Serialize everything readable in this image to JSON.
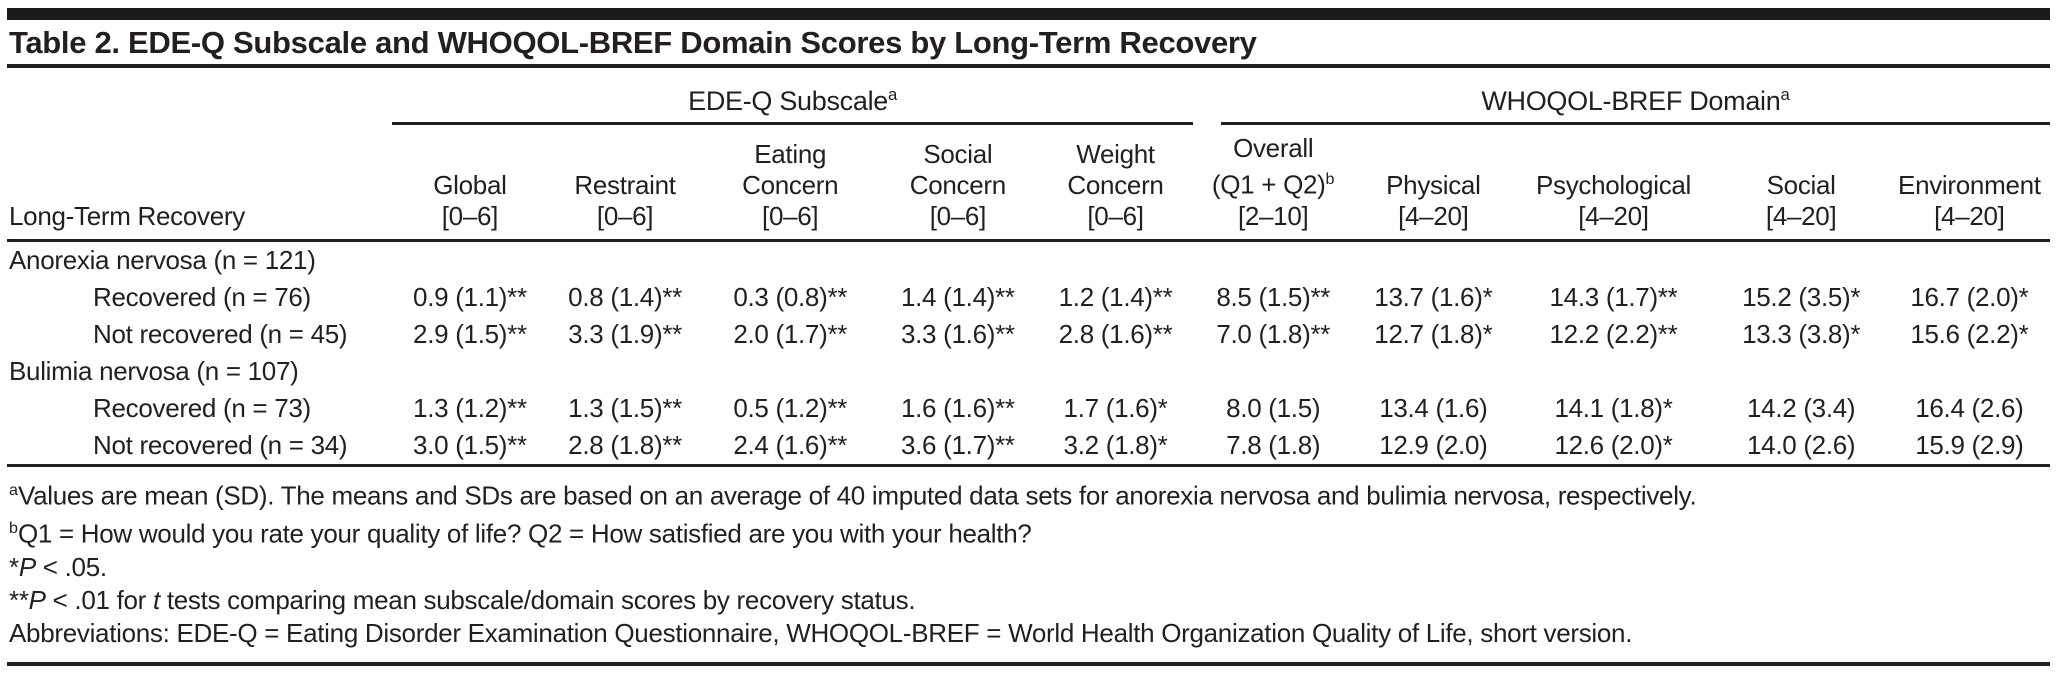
{
  "title": "Table 2. EDE-Q Subscale and WHOQOL-BREF Domain Scores by Long-Term Recovery",
  "colors": {
    "ink": "#231f20",
    "background": "#ffffff",
    "top_bar": "#1b1b1b"
  },
  "table": {
    "stub_header": "Long-Term Recovery",
    "groups": [
      {
        "label": "EDE-Q Subscale",
        "sup": "a",
        "span": 5
      },
      {
        "label": "WHOQOL-BREF Domain",
        "sup": "a",
        "span": 5
      }
    ],
    "columns": [
      {
        "key": "global",
        "lines": [
          "Global",
          "[0–6]"
        ]
      },
      {
        "key": "restraint",
        "lines": [
          "Restraint",
          "[0–6]"
        ]
      },
      {
        "key": "eating-concern",
        "lines": [
          "Eating",
          "Concern",
          "[0–6]"
        ]
      },
      {
        "key": "social-concern",
        "lines": [
          "Social",
          "Concern",
          "[0–6]"
        ]
      },
      {
        "key": "weight-concern",
        "lines": [
          "Weight",
          "Concern",
          "[0–6]"
        ]
      },
      {
        "key": "overall",
        "lines": [
          "Overall",
          "(Q1 + Q2)",
          "[2–10]"
        ],
        "sup": "b",
        "sup_after_line": 1
      },
      {
        "key": "physical",
        "lines": [
          "Physical",
          "[4–20]"
        ]
      },
      {
        "key": "psychological",
        "lines": [
          "Psychological",
          "[4–20]"
        ]
      },
      {
        "key": "social",
        "lines": [
          "Social",
          "[4–20]"
        ]
      },
      {
        "key": "environment",
        "lines": [
          "Environment",
          "[4–20]"
        ]
      }
    ],
    "rows": [
      {
        "label": "Anorexia nervosa (n = 121)",
        "indent": false,
        "values": []
      },
      {
        "label": "Recovered (n = 76)",
        "indent": true,
        "values": [
          "0.9 (1.1)**",
          "0.8 (1.4)**",
          "0.3 (0.8)**",
          "1.4 (1.4)**",
          "1.2 (1.4)**",
          "8.5 (1.5)**",
          "13.7 (1.6)*",
          "14.3 (1.7)**",
          "15.2 (3.5)*",
          "16.7 (2.0)*"
        ]
      },
      {
        "label": "Not recovered (n = 45)",
        "indent": true,
        "values": [
          "2.9 (1.5)**",
          "3.3 (1.9)**",
          "2.0 (1.7)**",
          "3.3 (1.6)**",
          "2.8 (1.6)**",
          "7.0 (1.8)**",
          "12.7 (1.8)*",
          "12.2 (2.2)**",
          "13.3 (3.8)*",
          "15.6 (2.2)*"
        ]
      },
      {
        "label": "Bulimia nervosa (n = 107)",
        "indent": false,
        "values": []
      },
      {
        "label": "Recovered (n = 73)",
        "indent": true,
        "values": [
          "1.3 (1.2)**",
          "1.3 (1.5)**",
          "0.5 (1.2)**",
          "1.6 (1.6)**",
          "1.7 (1.6)*",
          "8.0 (1.5)",
          "13.4 (1.6)",
          "14.1 (1.8)*",
          "14.2 (3.4)",
          "16.4 (2.6)"
        ]
      },
      {
        "label": "Not recovered (n = 34)",
        "indent": true,
        "values": [
          "3.0 (1.5)**",
          "2.8 (1.8)**",
          "2.4 (1.6)**",
          "3.6 (1.7)**",
          "3.2 (1.8)*",
          "7.8 (1.8)",
          "12.9 (2.0)",
          "12.6 (2.0)*",
          "14.0 (2.6)",
          "15.9 (2.9)"
        ]
      }
    ]
  },
  "footnotes": [
    {
      "marker": "a",
      "segments": [
        {
          "t": "Values are mean (SD). The means and SDs are based on an average of 40 imputed data sets for anorexia nervosa and bulimia nervosa, respectively."
        }
      ]
    },
    {
      "marker": "b",
      "segments": [
        {
          "t": "Q1 = How would you rate your quality of life? Q2 = How satisfied are you with your health?"
        }
      ]
    },
    {
      "marker": "",
      "segments": [
        {
          "t": "*"
        },
        {
          "t": "P",
          "i": true
        },
        {
          "t": " < .05."
        }
      ]
    },
    {
      "marker": "",
      "segments": [
        {
          "t": "**"
        },
        {
          "t": "P",
          "i": true
        },
        {
          "t": " < .01 for "
        },
        {
          "t": "t",
          "i": true
        },
        {
          "t": " tests comparing mean subscale/domain scores by recovery status."
        }
      ]
    },
    {
      "marker": "",
      "segments": [
        {
          "t": "Abbreviations: EDE-Q = Eating Disorder Examination Questionnaire, WHOQOL-BREF = World Health Organization Quality of Life, short version."
        }
      ]
    }
  ]
}
